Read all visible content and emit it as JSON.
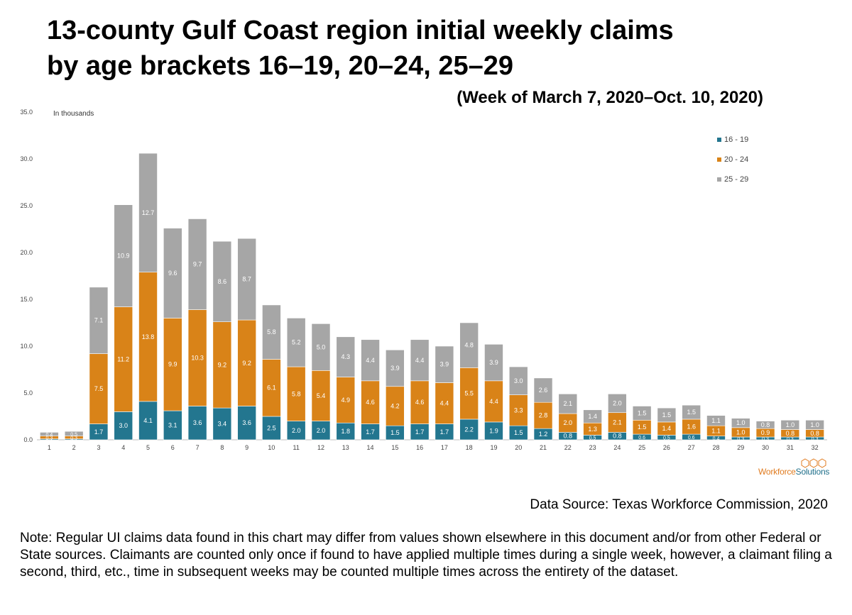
{
  "title_line1": "13-county Gulf Coast region initial weekly claims",
  "title_line2": "by age brackets 16–19, 20–24, 25–29",
  "subtitle": "(Week of March 7, 2020–Oct. 10, 2020)",
  "source": "Data Source: Texas Workforce Commission, 2020",
  "note": "Note: Regular UI claims data found in this chart may differ from values shown elsewhere in this document and/or from other Federal or State sources. Claimants are counted only once if found to have applied multiple times during a single week, however, a claimant filing a second, third, etc., time in subsequent weeks may be counted multiple times across the entirety of the dataset.",
  "logo": {
    "word1": "Workforce",
    "word2": "Solutions"
  },
  "chart_data": {
    "type": "bar",
    "stacked": true,
    "unit_label": "In thousands",
    "categories": [
      "1",
      "2",
      "3",
      "4",
      "5",
      "6",
      "7",
      "8",
      "9",
      "10",
      "11",
      "12",
      "13",
      "14",
      "15",
      "16",
      "17",
      "18",
      "19",
      "20",
      "21",
      "22",
      "23",
      "24",
      "25",
      "26",
      "27",
      "28",
      "29",
      "30",
      "31",
      "32"
    ],
    "ylim": [
      0,
      35
    ],
    "yticks": [
      "0.0",
      "5.0",
      "10.0",
      "15.0",
      "20.0",
      "25.0",
      "30.0",
      "35.0"
    ],
    "legend_position": "top-right",
    "series": [
      {
        "name": "16 - 19",
        "color": "#23768f",
        "values": [
          0.1,
          0.1,
          1.7,
          3.0,
          4.1,
          3.1,
          3.6,
          3.4,
          3.6,
          2.5,
          2.0,
          2.0,
          1.8,
          1.7,
          1.5,
          1.7,
          1.7,
          2.2,
          1.9,
          1.5,
          1.2,
          0.8,
          0.5,
          0.8,
          0.6,
          0.5,
          0.6,
          0.4,
          0.3,
          0.3,
          0.3,
          0.3
        ],
        "labels": [
          "0.1",
          "0.1",
          "1.7",
          "3.0",
          "4.1",
          "3.1",
          "3.6",
          "3.4",
          "3.6",
          "2.5",
          "2.0",
          "2.0",
          "1.8",
          "1.7",
          "1.5",
          "1.7",
          "1.7",
          "2.2",
          "1.9",
          "1.5",
          "1.2",
          "0.8",
          "0.5",
          "0.8",
          "0.6",
          "0.5",
          "0.6",
          "0.4",
          "0.3",
          "0.3",
          "0.3",
          "0.3"
        ]
      },
      {
        "name": "20 - 24",
        "color": "#d98318",
        "values": [
          0.3,
          0.3,
          7.5,
          11.2,
          13.8,
          9.9,
          10.3,
          9.2,
          9.2,
          6.1,
          5.8,
          5.4,
          4.9,
          4.6,
          4.2,
          4.6,
          4.4,
          5.5,
          4.4,
          3.3,
          2.8,
          2.0,
          1.3,
          2.1,
          1.5,
          1.4,
          1.6,
          1.1,
          1.0,
          0.9,
          0.8,
          0.8
        ],
        "labels": [
          "0.3",
          "0.3",
          "7.5",
          "11.2",
          "13.8",
          "9.9",
          "10.3",
          "9.2",
          "9.2",
          "6.1",
          "5.8",
          "5.4",
          "4.9",
          "4.6",
          "4.2",
          "4.6",
          "4.4",
          "5.5",
          "4.4",
          "3.3",
          "2.8",
          "2.0",
          "1.3",
          "2.1",
          "1.5",
          "1.4",
          "1.6",
          "1.1",
          "1.0",
          "0.9",
          "0.8",
          "0.8"
        ]
      },
      {
        "name": "25 - 29",
        "color": "#a6a6a6",
        "values": [
          0.4,
          0.5,
          7.1,
          10.9,
          12.7,
          9.6,
          9.7,
          8.6,
          8.7,
          5.8,
          5.2,
          5.0,
          4.3,
          4.4,
          3.9,
          4.4,
          3.9,
          4.8,
          3.9,
          3.0,
          2.6,
          2.1,
          1.4,
          2.0,
          1.5,
          1.5,
          1.5,
          1.1,
          1.0,
          0.8,
          1.0,
          1.0
        ],
        "labels": [
          "0.4",
          "0.5",
          "7.1",
          "10.9",
          "12.7",
          "9.6",
          "9.7",
          "8.6",
          "8.7",
          "5.8",
          "5.2",
          "5.0",
          "4.3",
          "4.4",
          "3.9",
          "4.4",
          "3.9",
          "4.8",
          "3.9",
          "3.0",
          "2.6",
          "2.1",
          "1.4",
          "2.0",
          "1.5",
          "1.5",
          "1.5",
          "1.1",
          "1.0",
          "0.8",
          "1.0",
          "1.0"
        ]
      }
    ]
  }
}
